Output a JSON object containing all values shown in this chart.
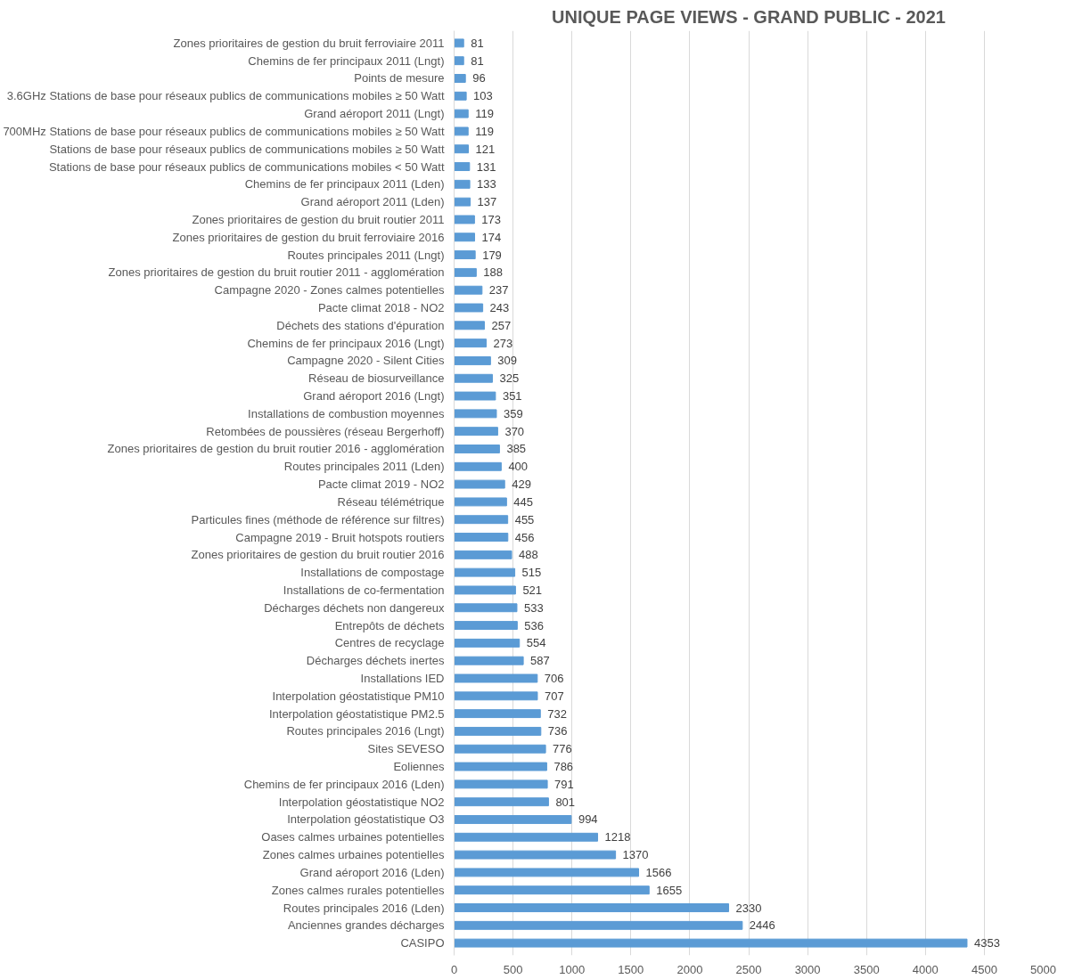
{
  "chart_data": {
    "type": "bar",
    "orientation": "horizontal",
    "title": "UNIQUE PAGE VIEWS - GRAND PUBLIC - 2021",
    "categories": [
      "Zones prioritaires de gestion du bruit ferroviaire 2011",
      "Chemins de fer principaux 2011 (Lngt)",
      "Points de mesure",
      "3.6GHz Stations de base pour réseaux publics de communications mobiles ≥ 50 Watt",
      "Grand aéroport 2011 (Lngt)",
      "700MHz Stations de base pour réseaux publics de communications mobiles ≥ 50 Watt",
      "Stations de base pour réseaux publics de communications mobiles ≥ 50 Watt",
      "Stations de base pour réseaux publics de communications mobiles < 50 Watt",
      "Chemins de fer principaux 2011 (Lden)",
      "Grand aéroport 2011 (Lden)",
      "Zones prioritaires de gestion du bruit routier 2011",
      "Zones prioritaires de gestion du bruit ferroviaire 2016",
      "Routes principales 2011 (Lngt)",
      "Zones prioritaires de gestion du bruit routier 2011 - agglomération",
      "Campagne 2020 - Zones calmes potentielles",
      "Pacte climat 2018 - NO2",
      "Déchets des stations d'épuration",
      "Chemins de fer principaux 2016 (Lngt)",
      "Campagne 2020 - Silent Cities",
      "Réseau de biosurveillance",
      "Grand aéroport 2016 (Lngt)",
      "Installations de combustion moyennes",
      "Retombées de poussières (réseau Bergerhoff)",
      "Zones prioritaires de gestion du bruit routier 2016 - agglomération",
      "Routes principales 2011 (Lden)",
      "Pacte climat 2019 - NO2",
      "Réseau télémétrique",
      "Particules fines (méthode de référence sur filtres)",
      "Campagne 2019 - Bruit hotspots routiers",
      "Zones prioritaires de gestion du bruit routier 2016",
      "Installations de compostage",
      "Installations de co-fermentation",
      "Décharges déchets non dangereux",
      "Entrepôts de déchets",
      "Centres de recyclage",
      "Décharges déchets inertes",
      "Installations IED",
      "Interpolation géostatistique PM10",
      "Interpolation géostatistique PM2.5",
      "Routes principales 2016 (Lngt)",
      "Sites SEVESO",
      "Eoliennes",
      "Chemins de fer principaux 2016 (Lden)",
      "Interpolation géostatistique NO2",
      "Interpolation géostatistique O3",
      "Oases calmes urbaines potentielles",
      "Zones calmes urbaines potentielles",
      "Grand aéroport 2016 (Lden)",
      "Zones calmes rurales potentielles",
      "Routes principales 2016 (Lden)",
      "Anciennes grandes décharges",
      "CASIPO"
    ],
    "values": [
      81,
      81,
      96,
      103,
      119,
      119,
      121,
      131,
      133,
      137,
      173,
      174,
      179,
      188,
      237,
      243,
      257,
      273,
      309,
      325,
      351,
      359,
      370,
      385,
      400,
      429,
      445,
      455,
      456,
      488,
      515,
      521,
      533,
      536,
      554,
      587,
      706,
      707,
      732,
      736,
      776,
      786,
      791,
      801,
      994,
      1218,
      1370,
      1566,
      1655,
      2330,
      2446,
      4353
    ],
    "color": "#5b9bd5",
    "data_labels": true,
    "xlim": [
      0,
      5000
    ],
    "xticks": [
      0,
      500,
      1000,
      1500,
      2000,
      2500,
      3000,
      3500,
      4000,
      4500,
      5000
    ],
    "grid": "x"
  }
}
